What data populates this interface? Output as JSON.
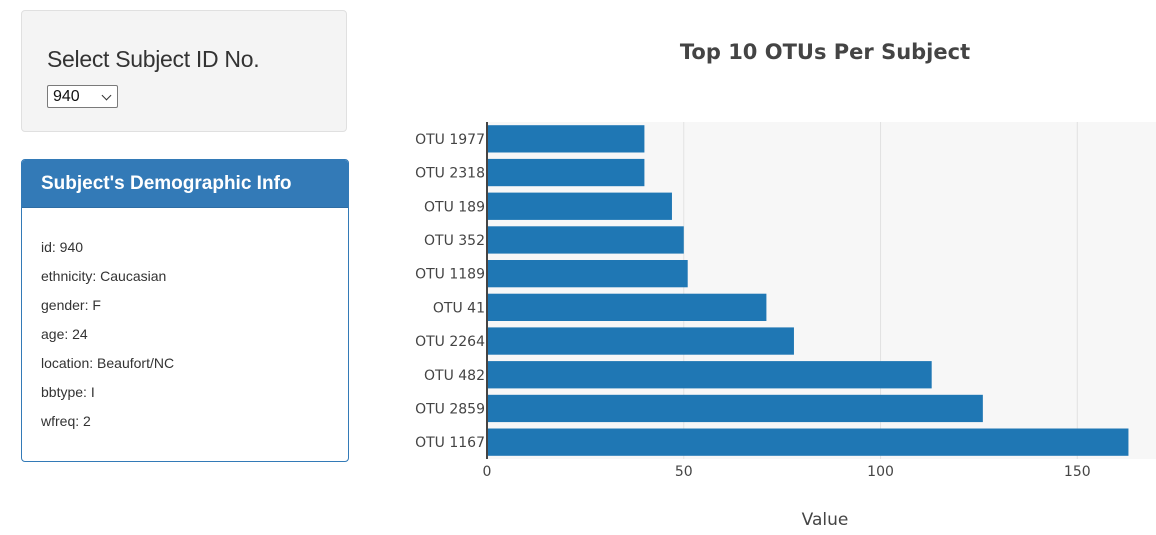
{
  "selector": {
    "title": "Select Subject ID No.",
    "selected": "940"
  },
  "demographics": {
    "heading": "Subject's Demographic Info",
    "rows": [
      "id: 940",
      "ethnicity: Caucasian",
      "gender: F",
      "age: 24",
      "location: Beaufort/NC",
      "bbtype: I",
      "wfreq: 2"
    ]
  },
  "colors": {
    "bar": "#1f77b4",
    "panel_accent": "#337ab7",
    "plot_bg": "#f7f7f7"
  },
  "chart_data": {
    "type": "bar",
    "orientation": "horizontal",
    "title": "Top 10 OTUs Per Subject",
    "xlabel": "Value",
    "ylabel": "",
    "categories": [
      "OTU 1977",
      "OTU 2318",
      "OTU 189",
      "OTU 352",
      "OTU 1189",
      "OTU 41",
      "OTU 2264",
      "OTU 482",
      "OTU 2859",
      "OTU 1167"
    ],
    "values": [
      40,
      40,
      47,
      50,
      51,
      71,
      78,
      113,
      126,
      163
    ],
    "xlim": [
      0,
      170
    ],
    "xticks": [
      0,
      50,
      100,
      150
    ],
    "grid": true,
    "legend": "none"
  }
}
